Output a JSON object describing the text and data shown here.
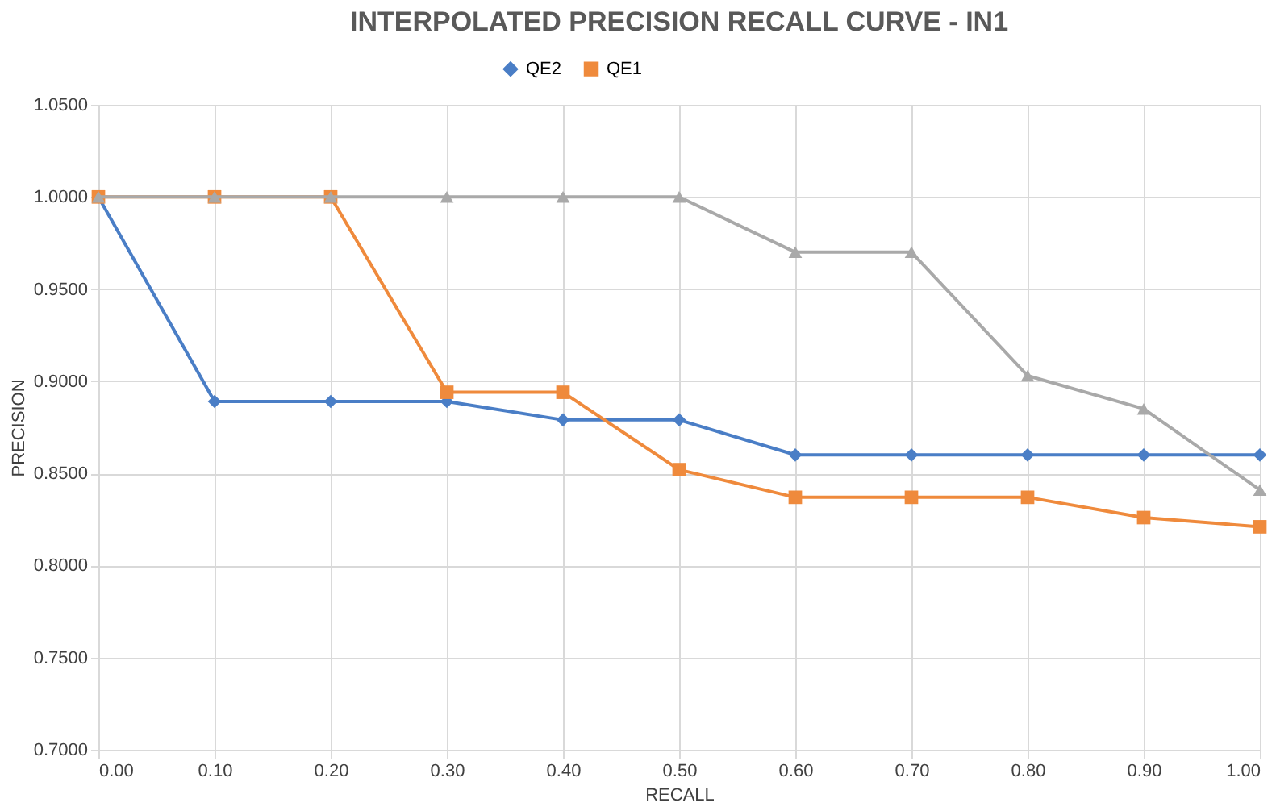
{
  "chart_data": {
    "type": "line",
    "title": "INTERPOLATED PRECISION RECALL CURVE - IN1",
    "xlabel": "RECALL",
    "ylabel": "PRECISION",
    "x": [
      0,
      0.1,
      0.2,
      0.3,
      0.4,
      0.5,
      0.6,
      0.7,
      0.8,
      0.9,
      1.0
    ],
    "xlim": [
      0,
      1
    ],
    "ylim": [
      0.7,
      1.05
    ],
    "xticks": [
      {
        "value": 0,
        "label": "0.00"
      },
      {
        "value": 0.1,
        "label": "0.10"
      },
      {
        "value": 0.2,
        "label": "0.20"
      },
      {
        "value": 0.3,
        "label": "0.30"
      },
      {
        "value": 0.4,
        "label": "0.40"
      },
      {
        "value": 0.5,
        "label": "0.50"
      },
      {
        "value": 0.6,
        "label": "0.60"
      },
      {
        "value": 0.7,
        "label": "0.70"
      },
      {
        "value": 0.8,
        "label": "0.80"
      },
      {
        "value": 0.9,
        "label": "0.90"
      },
      {
        "value": 1,
        "label": "1.00"
      }
    ],
    "yticks": [
      {
        "value": 0.7,
        "label": "0.7000"
      },
      {
        "value": 0.75,
        "label": "0.7500"
      },
      {
        "value": 0.8,
        "label": "0.8000"
      },
      {
        "value": 0.85,
        "label": "0.8500"
      },
      {
        "value": 0.9,
        "label": "0.9000"
      },
      {
        "value": 0.95,
        "label": "0.9500"
      },
      {
        "value": 1.0,
        "label": "1.0000"
      },
      {
        "value": 1.05,
        "label": "1.0500"
      }
    ],
    "grid": true,
    "legend": "top",
    "series": [
      {
        "name": "QE2",
        "color": "#4a7ec6",
        "marker": "diamond",
        "values": [
          1.0,
          0.889,
          0.889,
          0.889,
          0.879,
          0.879,
          0.86,
          0.86,
          0.86,
          0.86,
          0.86
        ]
      },
      {
        "name": "QE1",
        "color": "#ef8a3c",
        "marker": "square",
        "values": [
          1.0,
          1.0,
          1.0,
          0.894,
          0.894,
          0.852,
          0.837,
          0.837,
          0.837,
          0.826,
          0.821
        ]
      },
      {
        "color": "#a9a9a9",
        "marker": "triangle",
        "values": [
          1.0,
          1.0,
          1.0,
          1.0,
          1.0,
          1.0,
          0.97,
          0.97,
          0.903,
          0.885,
          0.841
        ]
      }
    ]
  }
}
